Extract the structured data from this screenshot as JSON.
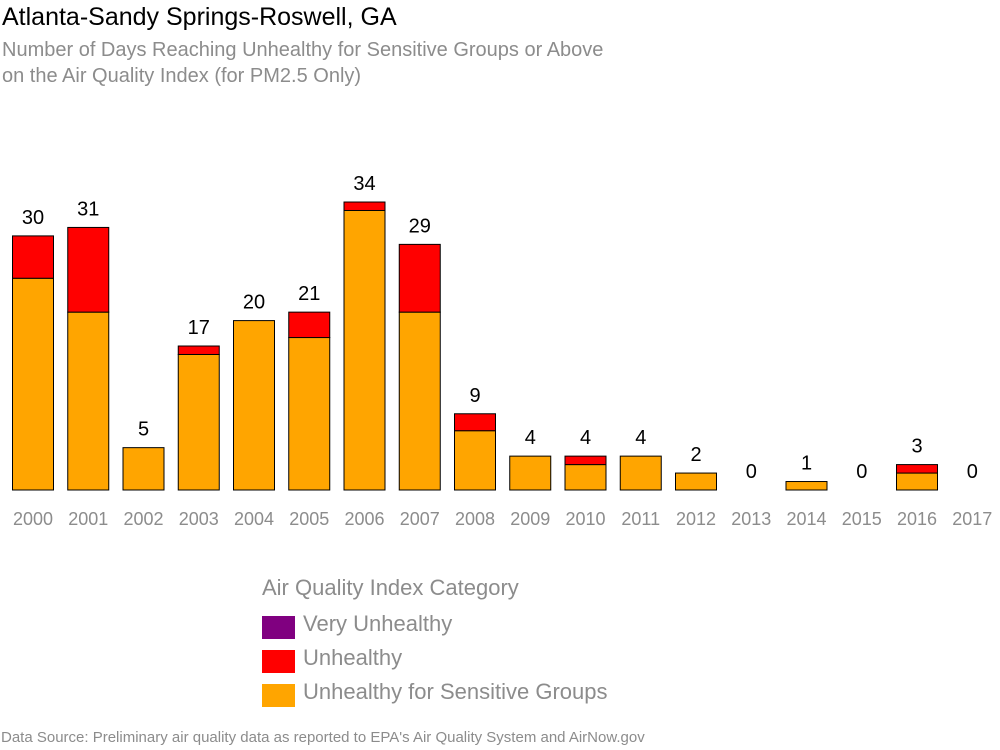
{
  "chart_data": {
    "type": "bar",
    "stacked": true,
    "title": "Atlanta-Sandy Springs-Roswell, GA",
    "subtitle": [
      "Number of Days Reaching Unhealthy for Sensitive Groups or Above",
      "on the Air Quality Index (for PM2.5 Only)"
    ],
    "categories": [
      "2000",
      "2001",
      "2002",
      "2003",
      "2004",
      "2005",
      "2006",
      "2007",
      "2008",
      "2009",
      "2010",
      "2011",
      "2012",
      "2013",
      "2014",
      "2015",
      "2016",
      "2017"
    ],
    "totals": [
      30,
      31,
      5,
      17,
      20,
      21,
      34,
      29,
      9,
      4,
      4,
      4,
      2,
      0,
      1,
      0,
      3,
      0
    ],
    "series": [
      {
        "name": "Unhealthy for Sensitive Groups",
        "color": "#FFA500",
        "values": [
          25,
          21,
          5,
          16,
          20,
          18,
          33,
          21,
          7,
          4,
          3,
          4,
          2,
          0,
          1,
          0,
          2,
          0
        ]
      },
      {
        "name": "Unhealthy",
        "color": "#FF0000",
        "values": [
          5,
          10,
          0,
          1,
          0,
          3,
          1,
          8,
          2,
          0,
          1,
          0,
          0,
          0,
          0,
          0,
          1,
          0
        ]
      },
      {
        "name": "Very Unhealthy",
        "color": "#800080",
        "values": [
          0,
          0,
          0,
          0,
          0,
          0,
          0,
          0,
          0,
          0,
          0,
          0,
          0,
          0,
          0,
          0,
          0,
          0
        ]
      }
    ],
    "ylim": [
      0,
      36
    ],
    "grid": false,
    "legend_placement": "bottom-center"
  },
  "legend": {
    "title": "Air Quality Index Category",
    "items": [
      {
        "label": "Very Unhealthy",
        "color": "#800080"
      },
      {
        "label": "Unhealthy",
        "color": "#FF0000"
      },
      {
        "label": "Unhealthy for Sensitive Groups",
        "color": "#FFA500"
      }
    ]
  },
  "source": "Data Source: Preliminary air quality data as reported to EPA's Air Quality System and AirNow.gov"
}
